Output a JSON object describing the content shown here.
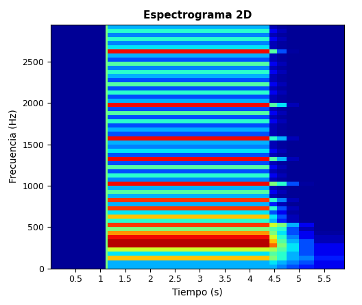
{
  "chart_data": {
    "type": "heatmap",
    "title": "Espectrograma 2D",
    "x_label": "Tiempo (s)",
    "y_label": "Frecuencia (Hz)",
    "xlim": [
      0,
      5.9
    ],
    "ylim": [
      0,
      2950
    ],
    "xticks": [
      0.5,
      1,
      1.5,
      2,
      2.5,
      3,
      3.5,
      4,
      4.5,
      5,
      5.5
    ],
    "yticks": [
      0,
      500,
      1000,
      1500,
      2000,
      2500
    ],
    "color": "jet",
    "color_range": [
      0,
      1
    ],
    "time_edges": [
      0,
      1.1,
      1.15,
      4.4,
      4.55,
      4.75,
      5.0,
      5.3,
      5.9
    ],
    "freq_edges": [
      0,
      50,
      100,
      150,
      200,
      250,
      300,
      350,
      400,
      450,
      500,
      550,
      600,
      650,
      700,
      750,
      800,
      850,
      900,
      950,
      1000,
      1050,
      1100,
      1150,
      1200,
      1250,
      1300,
      1350,
      1400,
      1450,
      1500,
      1550,
      1600,
      1650,
      1700,
      1750,
      1800,
      1850,
      1900,
      1950,
      2000,
      2050,
      2100,
      2150,
      2200,
      2250,
      2300,
      2350,
      2400,
      2450,
      2500,
      2550,
      2600,
      2650,
      2700,
      2750,
      2800,
      2850,
      2900,
      2950
    ],
    "cells": [
      [
        0.02,
        0.5,
        0.3,
        0.3,
        0.25,
        0.2,
        0.15,
        0.1
      ],
      [
        0.02,
        0.5,
        0.3,
        0.35,
        0.3,
        0.25,
        0.2,
        0.1
      ],
      [
        0.02,
        0.5,
        0.7,
        0.5,
        0.4,
        0.3,
        0.25,
        0.15
      ],
      [
        0.02,
        0.5,
        0.35,
        0.45,
        0.4,
        0.3,
        0.2,
        0.1
      ],
      [
        0.02,
        0.5,
        0.6,
        0.55,
        0.45,
        0.35,
        0.2,
        0.1
      ],
      [
        0.02,
        0.5,
        0.95,
        0.8,
        0.5,
        0.35,
        0.2,
        0.1
      ],
      [
        0.02,
        0.5,
        0.95,
        0.7,
        0.45,
        0.3,
        0.2,
        0.05
      ],
      [
        0.02,
        0.5,
        0.9,
        0.6,
        0.4,
        0.25,
        0.1,
        0.05
      ],
      [
        0.02,
        0.5,
        0.75,
        0.5,
        0.35,
        0.2,
        0.1,
        0.03
      ],
      [
        0.02,
        0.5,
        0.5,
        0.45,
        0.4,
        0.2,
        0.05,
        0.02
      ],
      [
        0.02,
        0.5,
        0.85,
        0.6,
        0.5,
        0.3,
        0.1,
        0.02
      ],
      [
        0.02,
        0.5,
        0.4,
        0.3,
        0.15,
        0.05,
        0.02,
        0.02
      ],
      [
        0.02,
        0.5,
        0.7,
        0.35,
        0.2,
        0.05,
        0.02,
        0.02
      ],
      [
        0.02,
        0.5,
        0.35,
        0.2,
        0.1,
        0.03,
        0.02,
        0.02
      ],
      [
        0.02,
        0.5,
        0.85,
        0.4,
        0.2,
        0.05,
        0.02,
        0.02
      ],
      [
        0.02,
        0.5,
        0.3,
        0.15,
        0.05,
        0.02,
        0.02,
        0.02
      ],
      [
        0.02,
        0.5,
        0.85,
        0.4,
        0.25,
        0.05,
        0.02,
        0.02
      ],
      [
        0.02,
        0.5,
        0.3,
        0.05,
        0.03,
        0.02,
        0.02,
        0.02
      ],
      [
        0.02,
        0.5,
        0.45,
        0.1,
        0.05,
        0.02,
        0.02,
        0.02
      ],
      [
        0.02,
        0.5,
        0.3,
        0.05,
        0.03,
        0.02,
        0.02,
        0.02
      ],
      [
        0.02,
        0.5,
        0.9,
        0.5,
        0.4,
        0.2,
        0.03,
        0.02
      ],
      [
        0.02,
        0.5,
        0.25,
        0.05,
        0.03,
        0.02,
        0.02,
        0.02
      ],
      [
        0.02,
        0.5,
        0.4,
        0.1,
        0.05,
        0.02,
        0.02,
        0.02
      ],
      [
        0.02,
        0.5,
        0.2,
        0.05,
        0.03,
        0.02,
        0.02,
        0.02
      ],
      [
        0.02,
        0.5,
        0.45,
        0.1,
        0.05,
        0.02,
        0.02,
        0.02
      ],
      [
        0.02,
        0.5,
        0.2,
        0.05,
        0.03,
        0.02,
        0.02,
        0.02
      ],
      [
        0.02,
        0.5,
        0.9,
        0.45,
        0.3,
        0.05,
        0.02,
        0.02
      ],
      [
        0.02,
        0.5,
        0.2,
        0.05,
        0.03,
        0.02,
        0.02,
        0.02
      ],
      [
        0.02,
        0.5,
        0.35,
        0.1,
        0.05,
        0.02,
        0.02,
        0.02
      ],
      [
        0.02,
        0.5,
        0.25,
        0.05,
        0.03,
        0.02,
        0.02,
        0.02
      ],
      [
        0.02,
        0.5,
        0.3,
        0.05,
        0.03,
        0.02,
        0.02,
        0.02
      ],
      [
        0.02,
        0.5,
        0.9,
        0.4,
        0.3,
        0.05,
        0.02,
        0.02
      ],
      [
        0.02,
        0.5,
        0.2,
        0.05,
        0.03,
        0.02,
        0.02,
        0.02
      ],
      [
        0.02,
        0.5,
        0.3,
        0.05,
        0.03,
        0.02,
        0.02,
        0.02
      ],
      [
        0.02,
        0.5,
        0.2,
        0.05,
        0.03,
        0.02,
        0.02,
        0.02
      ],
      [
        0.02,
        0.5,
        0.4,
        0.1,
        0.05,
        0.02,
        0.02,
        0.02
      ],
      [
        0.02,
        0.5,
        0.2,
        0.05,
        0.03,
        0.02,
        0.02,
        0.02
      ],
      [
        0.02,
        0.5,
        0.45,
        0.1,
        0.05,
        0.02,
        0.02,
        0.02
      ],
      [
        0.02,
        0.5,
        0.2,
        0.05,
        0.03,
        0.02,
        0.02,
        0.02
      ],
      [
        0.02,
        0.5,
        0.9,
        0.45,
        0.35,
        0.05,
        0.02,
        0.02
      ],
      [
        0.02,
        0.5,
        0.3,
        0.05,
        0.03,
        0.02,
        0.02,
        0.02
      ],
      [
        0.02,
        0.5,
        0.2,
        0.05,
        0.03,
        0.02,
        0.02,
        0.02
      ],
      [
        0.02,
        0.5,
        0.4,
        0.1,
        0.05,
        0.02,
        0.02,
        0.02
      ],
      [
        0.02,
        0.5,
        0.2,
        0.05,
        0.03,
        0.02,
        0.02,
        0.02
      ],
      [
        0.02,
        0.5,
        0.45,
        0.1,
        0.05,
        0.02,
        0.02,
        0.02
      ],
      [
        0.02,
        0.5,
        0.2,
        0.05,
        0.03,
        0.02,
        0.02,
        0.02
      ],
      [
        0.02,
        0.5,
        0.3,
        0.05,
        0.03,
        0.02,
        0.02,
        0.02
      ],
      [
        0.02,
        0.5,
        0.4,
        0.1,
        0.05,
        0.02,
        0.02,
        0.02
      ],
      [
        0.02,
        0.5,
        0.25,
        0.05,
        0.03,
        0.02,
        0.02,
        0.02
      ],
      [
        0.02,
        0.5,
        0.45,
        0.1,
        0.05,
        0.02,
        0.02,
        0.02
      ],
      [
        0.02,
        0.5,
        0.2,
        0.05,
        0.03,
        0.02,
        0.02,
        0.02
      ],
      [
        0.02,
        0.5,
        0.3,
        0.05,
        0.03,
        0.02,
        0.02,
        0.02
      ],
      [
        0.02,
        0.5,
        0.9,
        0.45,
        0.2,
        0.03,
        0.02,
        0.02
      ],
      [
        0.02,
        0.5,
        0.35,
        0.05,
        0.03,
        0.02,
        0.02,
        0.02
      ],
      [
        0.02,
        0.5,
        0.25,
        0.05,
        0.03,
        0.02,
        0.02,
        0.02
      ],
      [
        0.02,
        0.5,
        0.4,
        0.1,
        0.05,
        0.02,
        0.02,
        0.02
      ],
      [
        0.02,
        0.5,
        0.25,
        0.05,
        0.03,
        0.02,
        0.02,
        0.02
      ],
      [
        0.02,
        0.5,
        0.4,
        0.1,
        0.05,
        0.02,
        0.02,
        0.02
      ],
      [
        0.02,
        0.5,
        0.3,
        0.05,
        0.03,
        0.02,
        0.02,
        0.02
      ]
    ]
  }
}
